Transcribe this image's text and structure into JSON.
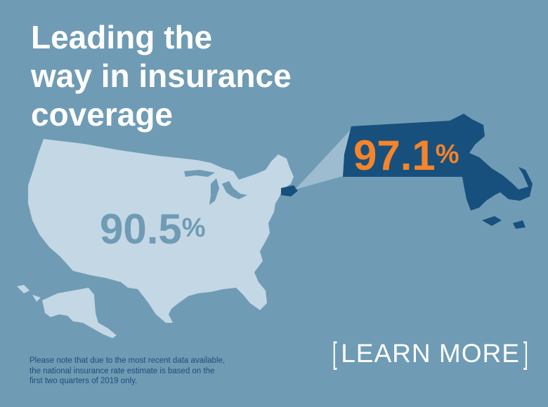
{
  "colors": {
    "background": "#6f9bb5",
    "us_map": "#c3d7e4",
    "massachusetts": "#17507c",
    "highlight_orange": "#f5842a",
    "national_stat": "#6f9bb5"
  },
  "headline": {
    "line1": "Leading the",
    "line2": "way in insurance",
    "line3": "coverage"
  },
  "national": {
    "value": "90.5",
    "unit": "%"
  },
  "massachusetts": {
    "value": "97.1",
    "unit": "%"
  },
  "footnote": {
    "line1": "Please note that due to the most recent data available,",
    "line2": "the national insurance rate estimate is based on the",
    "line3": "first two quarters of 2019 only."
  },
  "cta": {
    "open_bracket": "[",
    "label": "LEARN MORE",
    "close_bracket": "]"
  }
}
